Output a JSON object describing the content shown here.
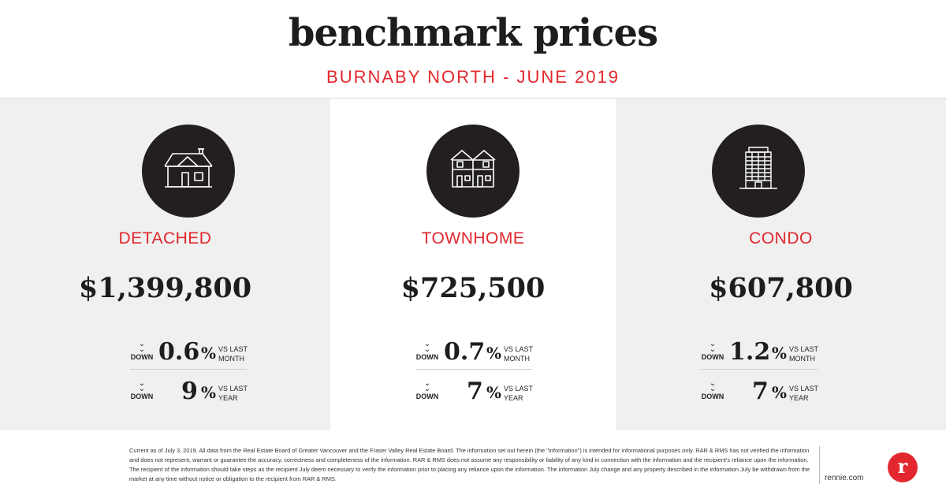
{
  "header": {
    "title": "benchmark prices",
    "subtitle": "BURNABY NORTH - JUNE 2019"
  },
  "colors": {
    "accent": "#e2272e",
    "dark": "#231f20",
    "panel_gray": "#f0f0f0"
  },
  "panels": [
    {
      "icon": "detached-house-icon",
      "type": "DETACHED",
      "price": "$1,399,800",
      "stats": [
        {
          "arrow": "chevron-double-down-icon",
          "direction": "DOWN",
          "value": "0.6",
          "unit": "%",
          "vs_line1": "VS LAST",
          "vs_line2": "MONTH"
        },
        {
          "arrow": "chevron-double-down-icon",
          "direction": "DOWN",
          "value": "9",
          "unit": "%",
          "vs_line1": "VS LAST",
          "vs_line2": "YEAR"
        }
      ]
    },
    {
      "icon": "townhome-icon",
      "type": "TOWNHOME",
      "price": "$725,500",
      "stats": [
        {
          "arrow": "chevron-double-down-icon",
          "direction": "DOWN",
          "value": "0.7",
          "unit": "%",
          "vs_line1": "VS LAST",
          "vs_line2": "MONTH"
        },
        {
          "arrow": "chevron-double-down-icon",
          "direction": "DOWN",
          "value": "7",
          "unit": "%",
          "vs_line1": "VS LAST",
          "vs_line2": "YEAR"
        }
      ]
    },
    {
      "icon": "condo-tower-icon",
      "type": "CONDO",
      "price": "$607,800",
      "stats": [
        {
          "arrow": "chevron-double-down-icon",
          "direction": "DOWN",
          "value": "1.2",
          "unit": "%",
          "vs_line1": "VS LAST",
          "vs_line2": "MONTH"
        },
        {
          "arrow": "chevron-double-down-icon",
          "direction": "DOWN",
          "value": "7",
          "unit": "%",
          "vs_line1": "VS LAST",
          "vs_line2": "YEAR"
        }
      ]
    }
  ],
  "footer": {
    "disclaimer": "Current as of July 3, 2019. All data from the Real Estate Board of Greater Vancouver and the Fraser Valley Real Estate Board. The information set out herein (the \"Information\") is intended for informational purposes only. RAR & RMS has not verified the information and does not represent, warrant or guarantee the accuracy, correctness and completeness of the information. RAR & RMS does not assume any responsibility or liability of any kind in connection with the information and the recipient's reliance upon the information. The recipient of the information should take steps as the recipient July deem necessary to verify the information prior to placing any reliance upon the information. The information July change and any property described in the information July be withdrawn from the market at any time without notice or obligation to the recipient from RAR & RMS.",
    "site": "rennie.com",
    "logo_letter": "r"
  }
}
